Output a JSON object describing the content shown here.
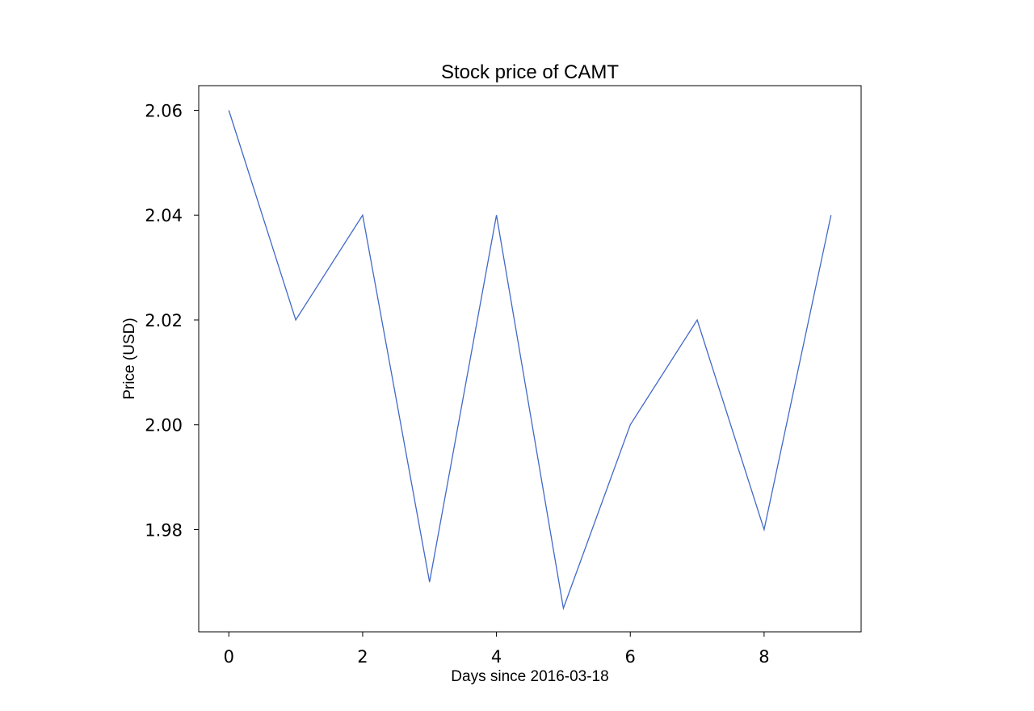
{
  "chart_data": {
    "type": "line",
    "title": "Stock price of CAMT",
    "xlabel": "Days since 2016-03-18",
    "ylabel": "Price (USD)",
    "x": [
      0,
      1,
      2,
      3,
      4,
      5,
      6,
      7,
      8,
      9
    ],
    "series": [
      {
        "values": [
          2.06,
          2.02,
          2.04,
          1.97,
          2.04,
          1.965,
          2.0,
          2.02,
          1.98,
          2.04
        ],
        "color": "#4169c8"
      }
    ],
    "xlim": [
      -0.45,
      9.45
    ],
    "ylim": [
      1.9605,
      2.0647
    ],
    "xticks": [
      0,
      2,
      4,
      6,
      8
    ],
    "xtick_labels": [
      "0",
      "2",
      "4",
      "6",
      "8"
    ],
    "yticks": [
      1.98,
      2.0,
      2.02,
      2.04,
      2.06
    ],
    "ytick_labels": [
      "1.98",
      "2.00",
      "2.02",
      "2.04",
      "2.06"
    ],
    "grid": false,
    "legend": false
  }
}
